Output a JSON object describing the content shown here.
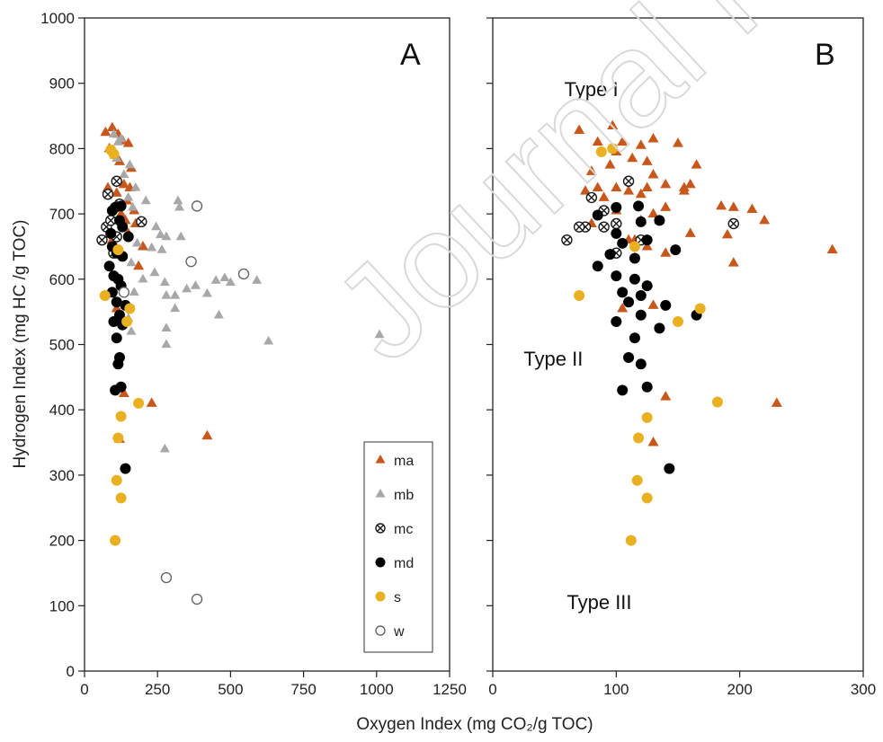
{
  "watermark_text": "Journal Pre-proofs",
  "shared": {
    "xlabel": "Oxygen Index (mg CO₂/g TOC)",
    "ylabel": "Hydrogen Index (mg HC /g TOC)",
    "yticks": [
      "0",
      "100",
      "200",
      "300",
      "400",
      "500",
      "600",
      "700",
      "800",
      "900",
      "1000"
    ]
  },
  "legend": {
    "placement": "inside lower-right of panel A",
    "entries": [
      {
        "key": "ma",
        "label": "ma",
        "marker": "triangle",
        "color": "#c8571c"
      },
      {
        "key": "mb",
        "label": "mb",
        "marker": "triangle",
        "color": "#a8a8a8"
      },
      {
        "key": "mc",
        "label": "mc",
        "marker": "circle-x",
        "color": "#1a1a1a"
      },
      {
        "key": "md",
        "label": "md",
        "marker": "circle-filled",
        "color": "#000000"
      },
      {
        "key": "s",
        "label": "s",
        "marker": "circle-filled",
        "color": "#e9b121"
      },
      {
        "key": "w",
        "label": "w",
        "marker": "circle-open",
        "color": "#666666"
      }
    ]
  },
  "chart_data": [
    {
      "type": "scatter",
      "panel_label": "A",
      "xlim": [
        0,
        1250
      ],
      "ylim": [
        0,
        1000
      ],
      "xticks": [
        "0",
        "250",
        "500",
        "750",
        "1000",
        "1250"
      ],
      "series": [
        {
          "name": "ma",
          "points": [
            [
              72,
              825
            ],
            [
              95,
              832
            ],
            [
              115,
              822
            ],
            [
              130,
              812
            ],
            [
              150,
              808
            ],
            [
              85,
              800
            ],
            [
              105,
              790
            ],
            [
              120,
              780
            ],
            [
              160,
              770
            ],
            [
              80,
              740
            ],
            [
              110,
              732
            ],
            [
              135,
              745
            ],
            [
              145,
              720
            ],
            [
              155,
              740
            ],
            [
              100,
              710
            ],
            [
              170,
              705
            ],
            [
              125,
              700
            ],
            [
              140,
              690
            ],
            [
              175,
              685
            ],
            [
              95,
              660
            ],
            [
              150,
              670
            ],
            [
              200,
              650
            ],
            [
              120,
              645
            ],
            [
              185,
              620
            ],
            [
              110,
              555
            ],
            [
              140,
              560
            ],
            [
              135,
              425
            ],
            [
              230,
              410
            ],
            [
              120,
              355
            ],
            [
              420,
              360
            ]
          ]
        },
        {
          "name": "mb",
          "points": [
            [
              100,
              822
            ],
            [
              115,
              810
            ],
            [
              125,
              815
            ],
            [
              110,
              785
            ],
            [
              155,
              775
            ],
            [
              135,
              760
            ],
            [
              175,
              740
            ],
            [
              150,
              725
            ],
            [
              210,
              720
            ],
            [
              165,
              710
            ],
            [
              190,
              690
            ],
            [
              245,
              680
            ],
            [
              325,
              710
            ],
            [
              320,
              720
            ],
            [
              260,
              668
            ],
            [
              280,
              665
            ],
            [
              330,
              665
            ],
            [
              180,
              655
            ],
            [
              230,
              648
            ],
            [
              265,
              645
            ],
            [
              160,
              625
            ],
            [
              200,
              600
            ],
            [
              240,
              610
            ],
            [
              275,
              595
            ],
            [
              170,
              580
            ],
            [
              280,
              575
            ],
            [
              310,
              575
            ],
            [
              350,
              585
            ],
            [
              380,
              590
            ],
            [
              420,
              578
            ],
            [
              450,
              598
            ],
            [
              480,
              602
            ],
            [
              500,
              595
            ],
            [
              590,
              598
            ],
            [
              140,
              560
            ],
            [
              150,
              540
            ],
            [
              310,
              555
            ],
            [
              280,
              525
            ],
            [
              460,
              545
            ],
            [
              630,
              505
            ],
            [
              1010,
              515
            ],
            [
              160,
              520
            ],
            [
              280,
              500
            ],
            [
              275,
              340
            ]
          ]
        },
        {
          "name": "mc",
          "points": [
            [
              60,
              660
            ],
            [
              75,
              680
            ],
            [
              90,
              690
            ],
            [
              80,
              730
            ],
            [
              110,
              750
            ],
            [
              120,
              715
            ],
            [
              110,
              665
            ],
            [
              195,
              688
            ],
            [
              100,
              640
            ]
          ]
        },
        {
          "name": "md",
          "points": [
            [
              105,
              710
            ],
            [
              125,
              712
            ],
            [
              95,
              705
            ],
            [
              120,
              690
            ],
            [
              90,
              670
            ],
            [
              130,
              680
            ],
            [
              150,
              665
            ],
            [
              95,
              650
            ],
            [
              110,
              640
            ],
            [
              130,
              635
            ],
            [
              85,
              620
            ],
            [
              100,
              605
            ],
            [
              115,
              600
            ],
            [
              125,
              590
            ],
            [
              95,
              580
            ],
            [
              110,
              565
            ],
            [
              140,
              560
            ],
            [
              120,
              545
            ],
            [
              100,
              535
            ],
            [
              130,
              530
            ],
            [
              110,
              510
            ],
            [
              120,
              480
            ],
            [
              115,
              470
            ],
            [
              125,
              435
            ],
            [
              105,
              430
            ],
            [
              140,
              310
            ]
          ]
        },
        {
          "name": "s",
          "points": [
            [
              90,
              798
            ],
            [
              100,
              792
            ],
            [
              115,
              645
            ],
            [
              70,
              575
            ],
            [
              155,
              555
            ],
            [
              145,
              535
            ],
            [
              185,
              410
            ],
            [
              125,
              390
            ],
            [
              115,
              357
            ],
            [
              110,
              292
            ],
            [
              125,
              265
            ],
            [
              105,
              200
            ]
          ]
        },
        {
          "name": "w",
          "points": [
            [
              385,
              712
            ],
            [
              365,
              627
            ],
            [
              545,
              608
            ],
            [
              135,
              580
            ],
            [
              280,
              143
            ],
            [
              385,
              110
            ]
          ]
        }
      ]
    },
    {
      "type": "scatter",
      "panel_label": "B",
      "xlim": [
        0,
        300
      ],
      "ylim": [
        0,
        1000
      ],
      "xticks": [
        "0",
        "100",
        "200",
        "300"
      ],
      "annotations": [
        {
          "text": "Type I",
          "x": 58,
          "y": 880
        },
        {
          "text": "Type II",
          "x": 25,
          "y": 468
        },
        {
          "text": "Type III",
          "x": 60,
          "y": 95
        }
      ],
      "series": [
        {
          "name": "ma",
          "points": [
            [
              70,
              828
            ],
            [
              97,
              835
            ],
            [
              85,
              810
            ],
            [
              105,
              810
            ],
            [
              130,
              815
            ],
            [
              120,
              805
            ],
            [
              150,
              808
            ],
            [
              100,
              795
            ],
            [
              113,
              785
            ],
            [
              80,
              765
            ],
            [
              95,
              775
            ],
            [
              125,
              780
            ],
            [
              165,
              775
            ],
            [
              85,
              740
            ],
            [
              100,
              740
            ],
            [
              125,
              740
            ],
            [
              140,
              745
            ],
            [
              155,
              740
            ],
            [
              130,
              760
            ],
            [
              110,
              735
            ],
            [
              160,
              745
            ],
            [
              75,
              735
            ],
            [
              90,
              725
            ],
            [
              120,
              730
            ],
            [
              155,
              735
            ],
            [
              185,
              712
            ],
            [
              210,
              707
            ],
            [
              195,
              710
            ],
            [
              220,
              690
            ],
            [
              100,
              705
            ],
            [
              140,
              710
            ],
            [
              130,
              700
            ],
            [
              120,
              690
            ],
            [
              80,
              685
            ],
            [
              135,
              690
            ],
            [
              110,
              660
            ],
            [
              160,
              670
            ],
            [
              190,
              668
            ],
            [
              115,
              660
            ],
            [
              140,
              640
            ],
            [
              125,
              650
            ],
            [
              195,
              625
            ],
            [
              105,
              555
            ],
            [
              130,
              560
            ],
            [
              275,
              645
            ],
            [
              140,
              420
            ],
            [
              230,
              410
            ],
            [
              130,
              350
            ]
          ]
        },
        {
          "name": "mc",
          "points": [
            [
              60,
              660
            ],
            [
              80,
              725
            ],
            [
              90,
              705
            ],
            [
              110,
              750
            ],
            [
              100,
              685
            ],
            [
              75,
              680
            ],
            [
              70,
              680
            ],
            [
              90,
              680
            ],
            [
              120,
              660
            ],
            [
              195,
              685
            ],
            [
              100,
              640
            ]
          ]
        },
        {
          "name": "md",
          "points": [
            [
              100,
              710
            ],
            [
              118,
              712
            ],
            [
              85,
              698
            ],
            [
              120,
              688
            ],
            [
              100,
              670
            ],
            [
              135,
              690
            ],
            [
              125,
              660
            ],
            [
              105,
              655
            ],
            [
              85,
              620
            ],
            [
              95,
              638
            ],
            [
              115,
              632
            ],
            [
              148,
              645
            ],
            [
              100,
              605
            ],
            [
              115,
              600
            ],
            [
              125,
              590
            ],
            [
              105,
              580
            ],
            [
              120,
              575
            ],
            [
              110,
              565
            ],
            [
              140,
              560
            ],
            [
              165,
              545
            ],
            [
              120,
              545
            ],
            [
              100,
              535
            ],
            [
              135,
              525
            ],
            [
              115,
              510
            ],
            [
              110,
              480
            ],
            [
              120,
              470
            ],
            [
              125,
              435
            ],
            [
              105,
              430
            ],
            [
              143,
              310
            ]
          ]
        },
        {
          "name": "s",
          "points": [
            [
              88,
              795
            ],
            [
              97,
              800
            ],
            [
              115,
              650
            ],
            [
              70,
              575
            ],
            [
              168,
              555
            ],
            [
              150,
              535
            ],
            [
              182,
              412
            ],
            [
              125,
              388
            ],
            [
              118,
              357
            ],
            [
              117,
              292
            ],
            [
              125,
              265
            ],
            [
              112,
              200
            ]
          ]
        }
      ]
    }
  ]
}
